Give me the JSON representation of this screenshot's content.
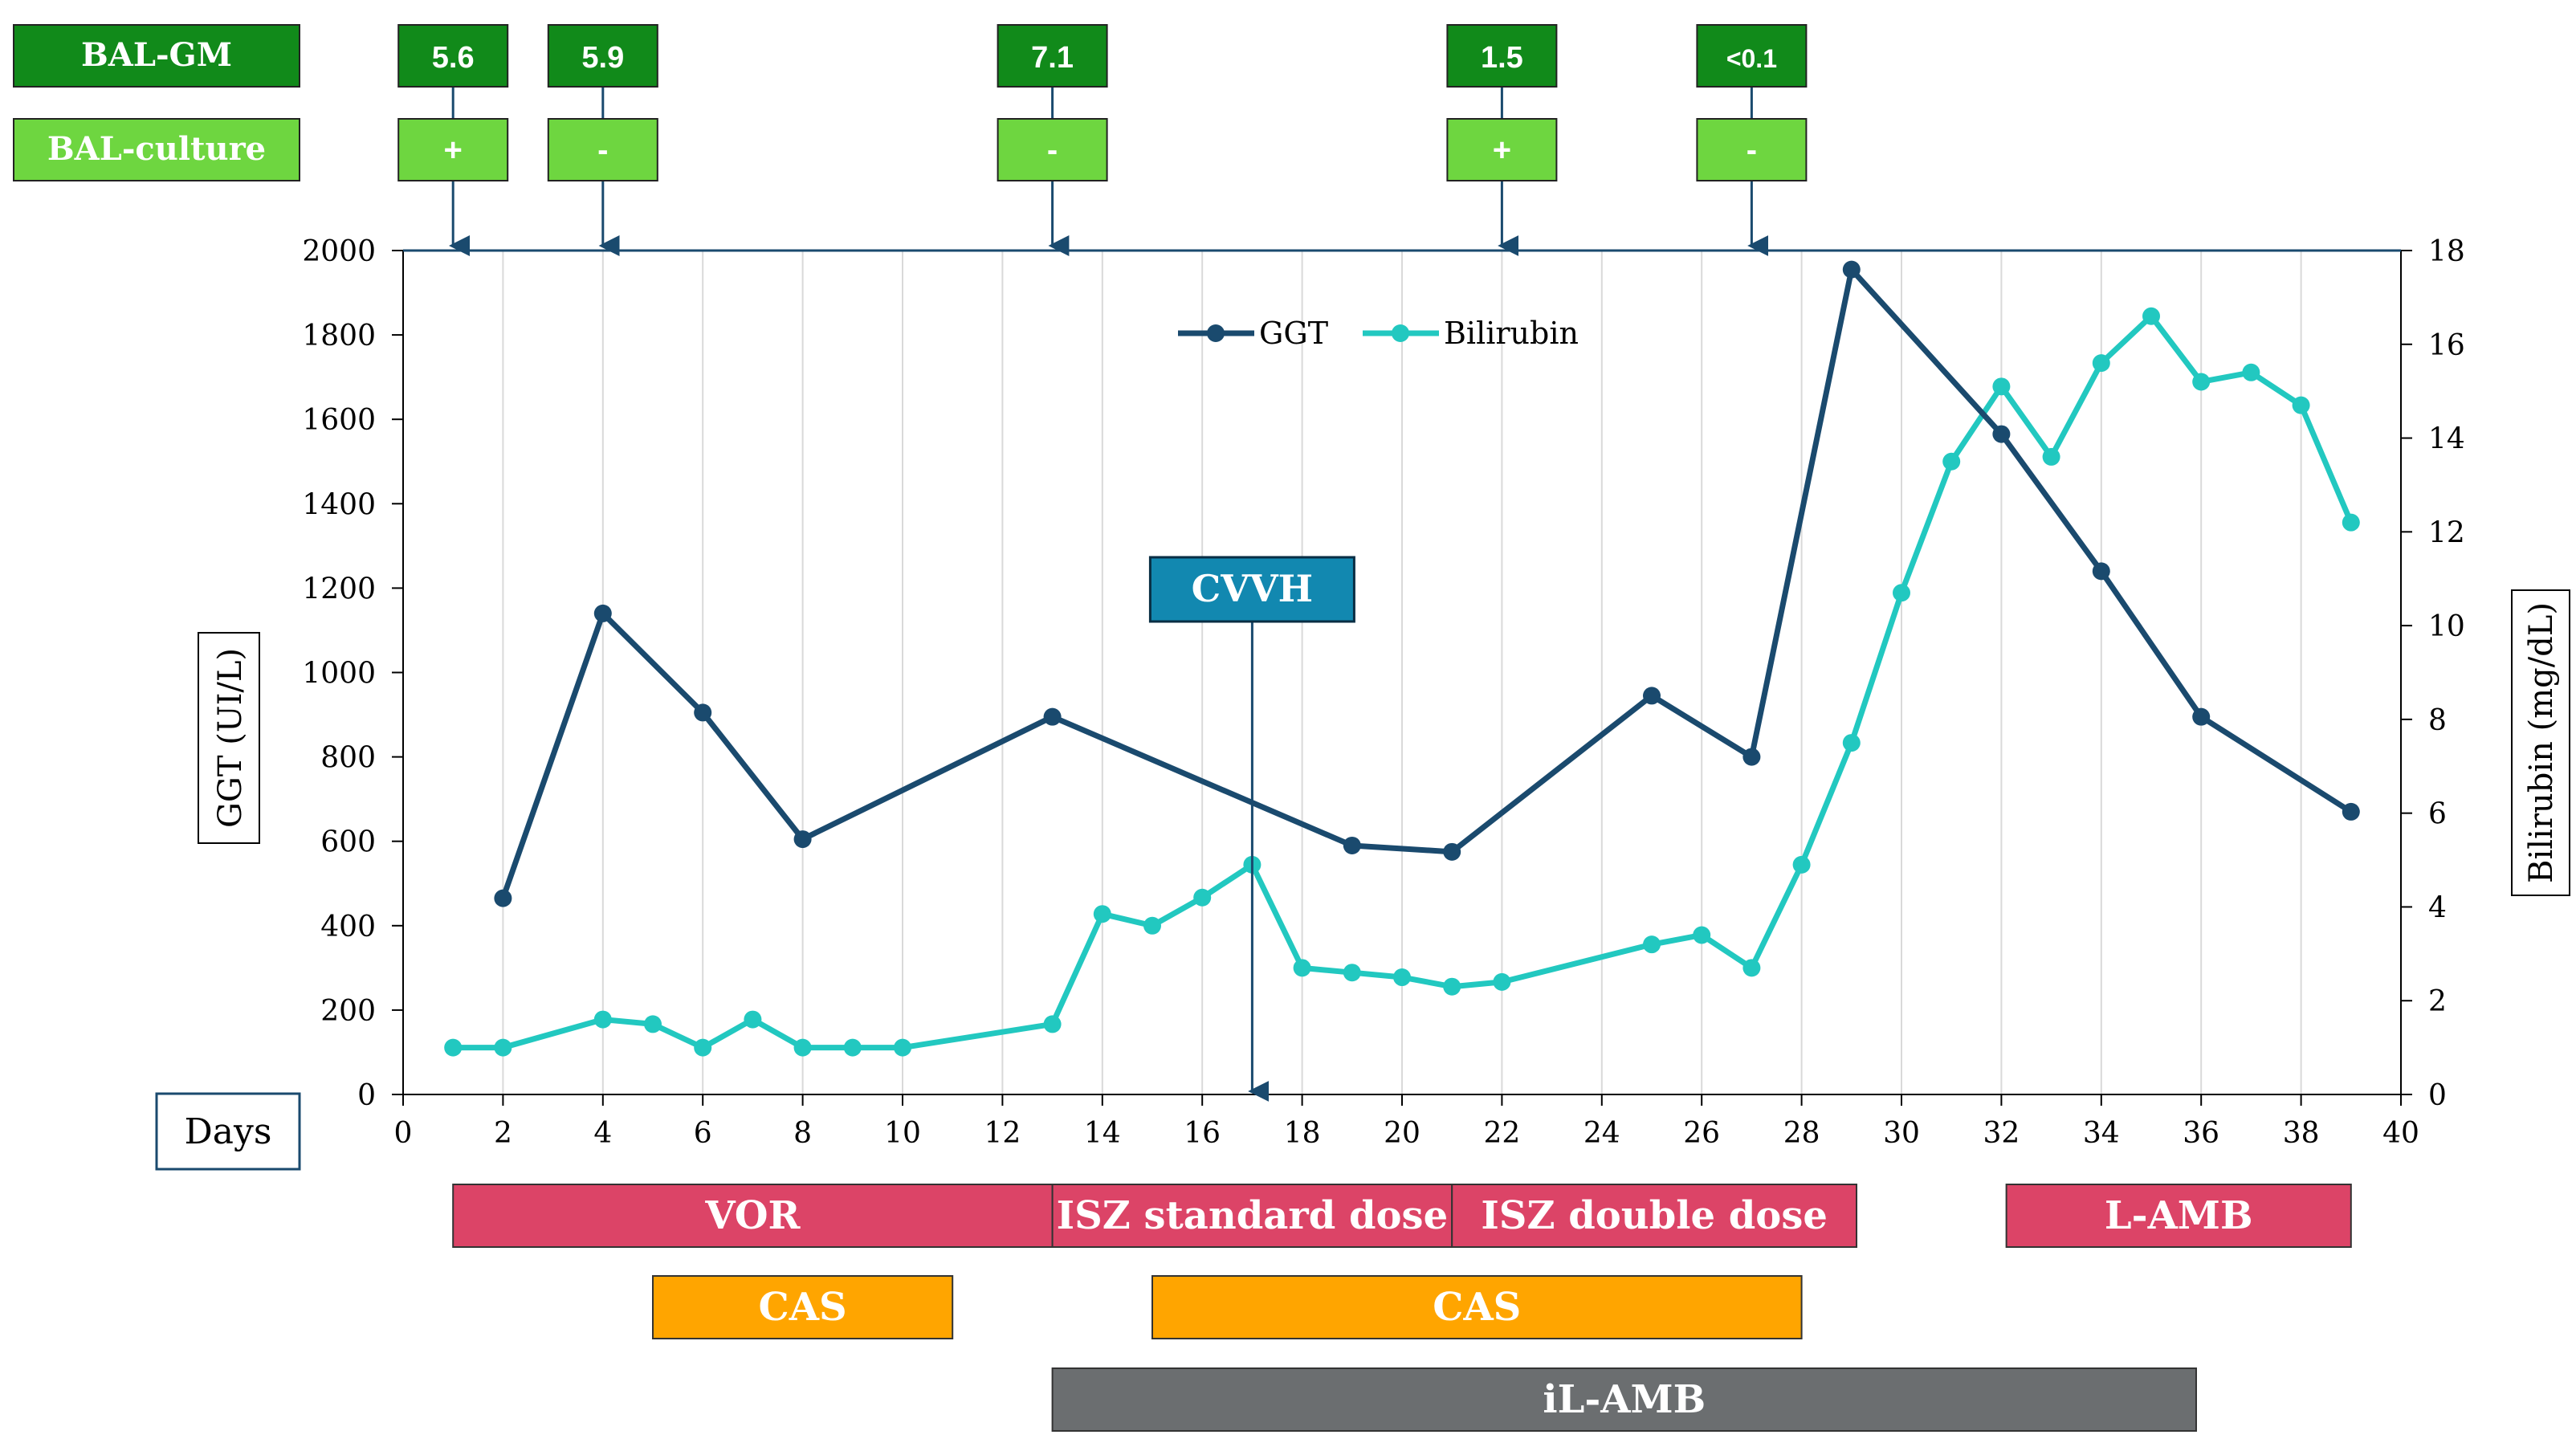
{
  "colors": {
    "ggt": "#1a4a6e",
    "bilirubin": "#22c8c0",
    "gm_box": "#118a1a",
    "culture_box": "#6ed640",
    "vor": "#dc4467",
    "cas": "#ffa500",
    "isz": "#dc4467",
    "ilamb": "#6b6e70",
    "lamb": "#dc4467",
    "cvvh": "#1288b0",
    "axis": "#000000",
    "grid": "#d9d9d9",
    "arrow": "#1a4a6e"
  },
  "row_labels": {
    "gm": "BAL-GM",
    "culture": "BAL-culture"
  },
  "bal_samples": [
    {
      "day": 1,
      "gm": "5.6",
      "culture": "+"
    },
    {
      "day": 4,
      "gm": "5.9",
      "culture": "-"
    },
    {
      "day": 13,
      "gm": "7.1",
      "culture": "-"
    },
    {
      "day": 22,
      "gm": "1.5",
      "culture": "+"
    },
    {
      "day": 27,
      "gm": "<0.1",
      "culture": "-"
    }
  ],
  "days_label": "Days",
  "cvvh": {
    "label": "CVVH",
    "day": 17
  },
  "therapy_bars": [
    {
      "row": 0,
      "label": "VOR",
      "start": 1,
      "end": 13,
      "color_key": "vor"
    },
    {
      "row": 0,
      "label": "ISZ standard dose",
      "start": 13,
      "end": 21,
      "color_key": "isz"
    },
    {
      "row": 0,
      "label": "ISZ double dose",
      "start": 21,
      "end": 29.1,
      "color_key": "isz"
    },
    {
      "row": 0,
      "label": "L-AMB",
      "start": 32.1,
      "end": 39,
      "color_key": "lamb"
    },
    {
      "row": 1,
      "label": "CAS",
      "start": 5,
      "end": 11,
      "color_key": "cas"
    },
    {
      "row": 1,
      "label": "CAS",
      "start": 15,
      "end": 28,
      "color_key": "cas"
    },
    {
      "row": 2,
      "label": "iL-AMB",
      "start": 13,
      "end": 35.9,
      "color_key": "ilamb"
    }
  ],
  "chart_data": {
    "type": "line",
    "xlabel": "Days",
    "ylabel": "GGT (UI/L)",
    "y2label": "Bilirubin (mg/dL)",
    "xlim": [
      0,
      40
    ],
    "ylim": [
      0,
      2000
    ],
    "y2lim": [
      0,
      18
    ],
    "xticks": [
      0,
      2,
      4,
      6,
      8,
      10,
      12,
      14,
      16,
      18,
      20,
      22,
      24,
      26,
      28,
      30,
      32,
      34,
      36,
      38,
      40
    ],
    "yticks": [
      0,
      200,
      400,
      600,
      800,
      1000,
      1200,
      1400,
      1600,
      1800,
      2000
    ],
    "y2ticks": [
      0,
      2,
      4,
      6,
      8,
      10,
      12,
      14,
      16,
      18
    ],
    "grid": "vertical",
    "legend_position": "top-center",
    "series": [
      {
        "name": "GGT",
        "axis": "left",
        "x": [
          2,
          4,
          6,
          8,
          13,
          19,
          21,
          25,
          27,
          29,
          32,
          34,
          36,
          39
        ],
        "values": [
          465,
          1140,
          905,
          605,
          895,
          590,
          575,
          945,
          800,
          1955,
          1565,
          1240,
          895,
          670
        ]
      },
      {
        "name": "Bilirubin",
        "axis": "right",
        "x": [
          1,
          2,
          4,
          5,
          6,
          7,
          8,
          9,
          10,
          13,
          14,
          15,
          16,
          17,
          18,
          19,
          20,
          21,
          22,
          25,
          26,
          27,
          28,
          29,
          30,
          31,
          32,
          33,
          34,
          35,
          36,
          37,
          38,
          39
        ],
        "values": [
          1.0,
          1.0,
          1.6,
          1.5,
          1.0,
          1.6,
          1.0,
          1.0,
          1.0,
          1.5,
          3.85,
          3.6,
          4.2,
          4.9,
          2.7,
          2.6,
          2.5,
          2.3,
          2.4,
          3.2,
          3.4,
          2.7,
          4.9,
          7.5,
          10.7,
          13.5,
          15.1,
          13.6,
          15.6,
          16.6,
          15.2,
          15.4,
          14.7,
          12.2
        ]
      }
    ]
  }
}
